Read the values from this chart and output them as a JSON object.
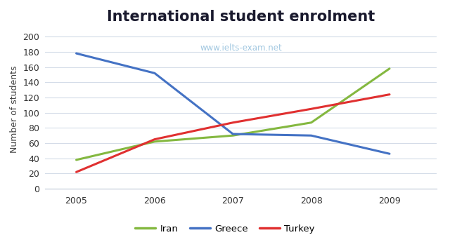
{
  "title": "International student enrolment",
  "watermark": "www.ielts-exam.net",
  "ylabel": "Number of students",
  "years": [
    2005,
    2006,
    2007,
    2008,
    2009
  ],
  "series": [
    {
      "label": "Iran",
      "values": [
        38,
        62,
        70,
        87,
        158
      ],
      "color": "#84b840",
      "linewidth": 2.2
    },
    {
      "label": "Greece",
      "values": [
        178,
        152,
        72,
        70,
        46
      ],
      "color": "#4472c4",
      "linewidth": 2.2
    },
    {
      "label": "Turkey",
      "values": [
        22,
        65,
        87,
        105,
        124
      ],
      "color": "#e03030",
      "linewidth": 2.2
    }
  ],
  "ylim": [
    0,
    210
  ],
  "yticks": [
    0,
    20,
    40,
    60,
    80,
    100,
    120,
    140,
    160,
    180,
    200
  ],
  "xlim": [
    2004.6,
    2009.6
  ],
  "background_color": "#ffffff",
  "grid_color": "#d4dce8",
  "title_fontsize": 15,
  "title_color": "#1a1a2e",
  "watermark_color": "#7ab0d4",
  "watermark_alpha": 0.7,
  "legend_ncol": 3,
  "ylabel_fontsize": 9,
  "tick_fontsize": 9
}
